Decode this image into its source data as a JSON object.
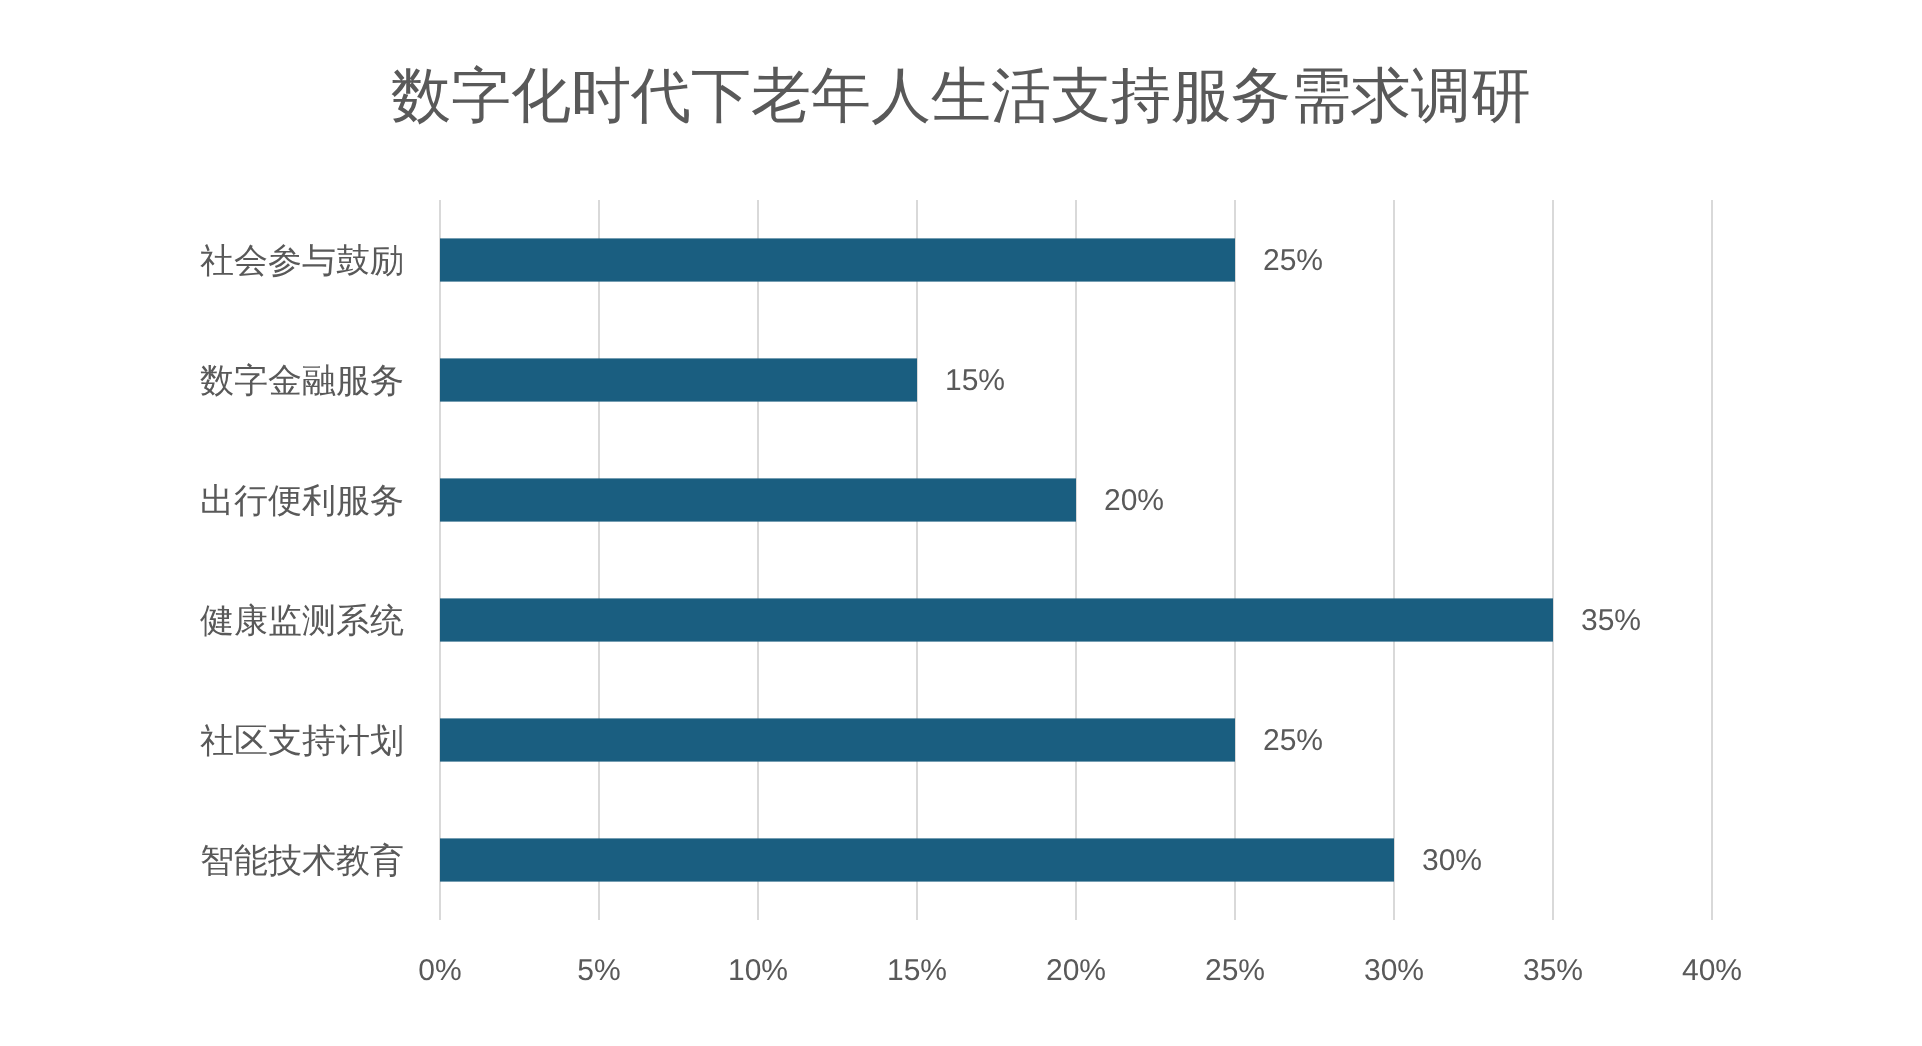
{
  "chart_data": {
    "type": "bar",
    "orientation": "horizontal",
    "title": "数字化时代下老年人生活支持服务需求调研",
    "categories": [
      "社会参与鼓励",
      "数字金融服务",
      "出行便利服务",
      "健康监测系统",
      "社区支持计划",
      "智能技术教育"
    ],
    "values": [
      25,
      15,
      20,
      35,
      25,
      30
    ],
    "value_labels": [
      "25%",
      "15%",
      "20%",
      "35%",
      "25%",
      "30%"
    ],
    "color": "#1a5e80",
    "xlim": [
      0,
      40
    ],
    "xticks": [
      {
        "value": 0,
        "label": "0%"
      },
      {
        "value": 5,
        "label": "5%"
      },
      {
        "value": 10,
        "label": "10%"
      },
      {
        "value": 15,
        "label": "15%"
      },
      {
        "value": 20,
        "label": "20%"
      },
      {
        "value": 25,
        "label": "25%"
      },
      {
        "value": 30,
        "label": "30%"
      },
      {
        "value": 35,
        "label": "35%"
      },
      {
        "value": 40,
        "label": "40%"
      }
    ],
    "grid": "x"
  }
}
